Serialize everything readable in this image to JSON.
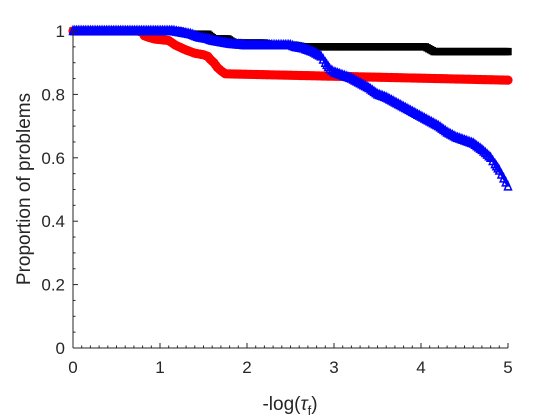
{
  "chart_data": {
    "type": "line",
    "title": "",
    "xlabel": "-log(",
    "xlabel_symbol": "τ",
    "xlabel_subscript": "f",
    "xlabel_close": ")",
    "ylabel": "Proportion of problems",
    "xlim": [
      0,
      5
    ],
    "ylim": [
      0,
      1
    ],
    "xticks": [
      "0",
      "1",
      "2",
      "3",
      "4",
      "5"
    ],
    "yticks": [
      "0",
      "0.2",
      "0.4",
      "0.6",
      "0.8",
      "1"
    ],
    "grid": false,
    "legend": "none",
    "series": [
      {
        "color": "#000000",
        "marker": "square",
        "points": [
          [
            0,
            1.0
          ],
          [
            1.22,
            1.0
          ],
          [
            1.32,
            0.99
          ],
          [
            1.55,
            0.99
          ],
          [
            1.62,
            0.975
          ],
          [
            1.78,
            0.975
          ],
          [
            1.85,
            0.962
          ],
          [
            2.2,
            0.962
          ],
          [
            2.3,
            0.955
          ],
          [
            2.55,
            0.955
          ],
          [
            2.65,
            0.95
          ],
          [
            4.05,
            0.95
          ],
          [
            4.15,
            0.935
          ],
          [
            5.0,
            0.935
          ]
        ]
      },
      {
        "color": "#ff0000",
        "marker": "circle",
        "points": [
          [
            0,
            1.0
          ],
          [
            0.75,
            1.0
          ],
          [
            0.8,
            0.995
          ],
          [
            0.82,
            0.985
          ],
          [
            0.87,
            0.98
          ],
          [
            0.93,
            0.975
          ],
          [
            1.1,
            0.97
          ],
          [
            1.18,
            0.955
          ],
          [
            1.3,
            0.94
          ],
          [
            1.4,
            0.93
          ],
          [
            1.5,
            0.925
          ],
          [
            1.55,
            0.92
          ],
          [
            1.58,
            0.91
          ],
          [
            1.62,
            0.9
          ],
          [
            1.66,
            0.885
          ],
          [
            1.7,
            0.875
          ],
          [
            1.75,
            0.865
          ],
          [
            5.0,
            0.845
          ]
        ]
      },
      {
        "color": "#0000ff",
        "marker": "triangle",
        "points": [
          [
            0,
            1.0
          ],
          [
            1.15,
            1.0
          ],
          [
            1.25,
            0.995
          ],
          [
            1.35,
            0.99
          ],
          [
            1.45,
            0.98
          ],
          [
            1.55,
            0.975
          ],
          [
            1.6,
            0.97
          ],
          [
            1.7,
            0.965
          ],
          [
            1.8,
            0.96
          ],
          [
            2.0,
            0.955
          ],
          [
            2.5,
            0.955
          ],
          [
            2.55,
            0.95
          ],
          [
            2.65,
            0.945
          ],
          [
            2.75,
            0.935
          ],
          [
            2.85,
            0.92
          ],
          [
            2.9,
            0.9
          ],
          [
            2.95,
            0.88
          ],
          [
            3.0,
            0.87
          ],
          [
            3.1,
            0.86
          ],
          [
            3.2,
            0.85
          ],
          [
            3.3,
            0.835
          ],
          [
            3.4,
            0.82
          ],
          [
            3.5,
            0.8
          ],
          [
            3.6,
            0.79
          ],
          [
            3.7,
            0.775
          ],
          [
            3.8,
            0.76
          ],
          [
            3.9,
            0.745
          ],
          [
            4.0,
            0.73
          ],
          [
            4.1,
            0.715
          ],
          [
            4.2,
            0.7
          ],
          [
            4.3,
            0.68
          ],
          [
            4.4,
            0.665
          ],
          [
            4.5,
            0.655
          ],
          [
            4.6,
            0.645
          ],
          [
            4.7,
            0.625
          ],
          [
            4.8,
            0.6
          ],
          [
            4.85,
            0.58
          ],
          [
            4.9,
            0.56
          ],
          [
            4.95,
            0.535
          ],
          [
            5.0,
            0.51
          ]
        ]
      }
    ]
  }
}
